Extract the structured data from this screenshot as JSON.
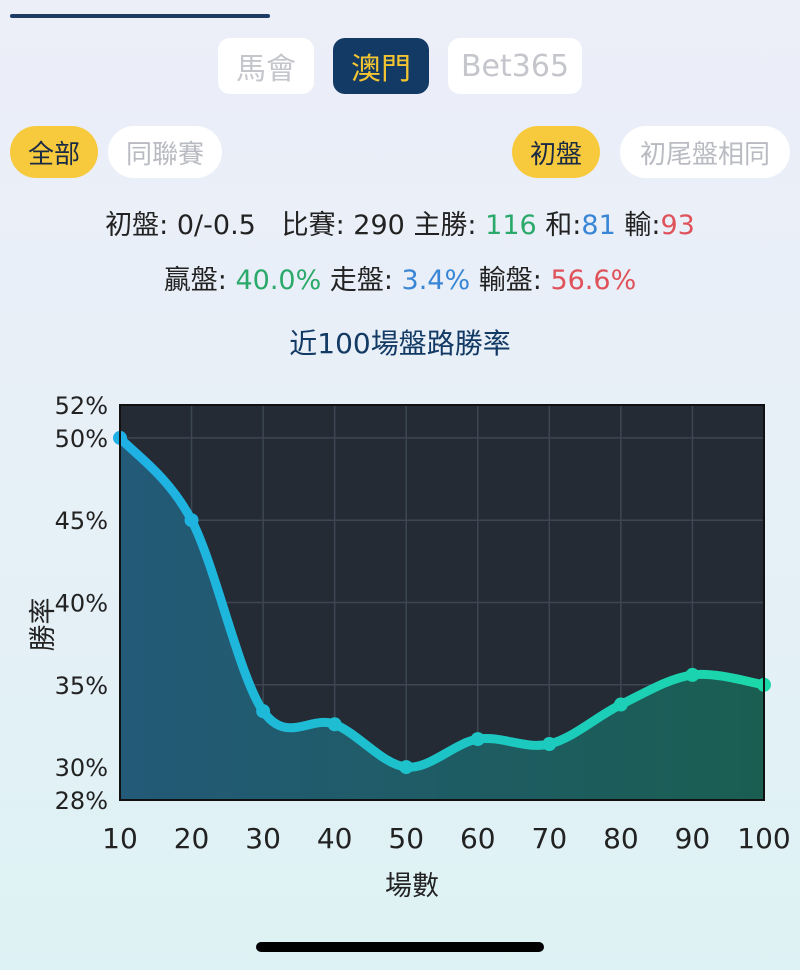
{
  "source_tabs": [
    {
      "label": "馬會",
      "active": false
    },
    {
      "label": "澳門",
      "active": true
    },
    {
      "label": "Bet365",
      "active": false
    }
  ],
  "filters": {
    "left": [
      {
        "label": "全部",
        "active": true
      },
      {
        "label": "同聯賽",
        "active": false
      }
    ],
    "right": [
      {
        "label": "初盤",
        "active": true
      },
      {
        "label": "初尾盤相同",
        "active": false
      }
    ]
  },
  "stats": {
    "line1": {
      "handicap_label": "初盤:",
      "handicap_value": "0/-0.5",
      "matches_label": "比賽:",
      "matches_value": "290",
      "home_win_label": "主勝:",
      "home_win_value": "116",
      "draw_label": "和:",
      "draw_value": "81",
      "loss_label": "輸:",
      "loss_value": "93"
    },
    "line2": {
      "win_label": "贏盤:",
      "win_value": "40.0%",
      "push_label": "走盤:",
      "push_value": "3.4%",
      "lose_label": "輸盤:",
      "lose_value": "56.6%"
    }
  },
  "colors": {
    "green": "#2aa96a",
    "blue": "#3a86d6",
    "red": "#e0525a",
    "navy": "#123a64",
    "gold": "#f4c531",
    "plot_bg": "#242b35"
  },
  "chart_data": {
    "type": "area",
    "title": "近100場盤路勝率",
    "xlabel": "場數",
    "ylabel": "勝率",
    "x": [
      10,
      20,
      30,
      40,
      50,
      60,
      70,
      80,
      90,
      100
    ],
    "values": [
      50.0,
      45.0,
      33.4,
      32.6,
      30.0,
      31.7,
      31.4,
      33.8,
      35.6,
      35.0
    ],
    "ylim": [
      28,
      52
    ],
    "yticks": [
      28,
      30,
      35,
      40,
      45,
      50,
      52
    ],
    "ytick_labels": [
      "28%",
      "30%",
      "35%",
      "40%",
      "45%",
      "50%",
      "52%"
    ],
    "xticks": [
      10,
      20,
      30,
      40,
      50,
      60,
      70,
      80,
      90,
      100
    ],
    "xtick_labels": [
      "10",
      "20",
      "30",
      "40",
      "50",
      "60",
      "70",
      "80",
      "90",
      "100"
    ],
    "grid": true,
    "line_gradient": [
      "#1fb0e6",
      "#1bd8a8"
    ]
  }
}
